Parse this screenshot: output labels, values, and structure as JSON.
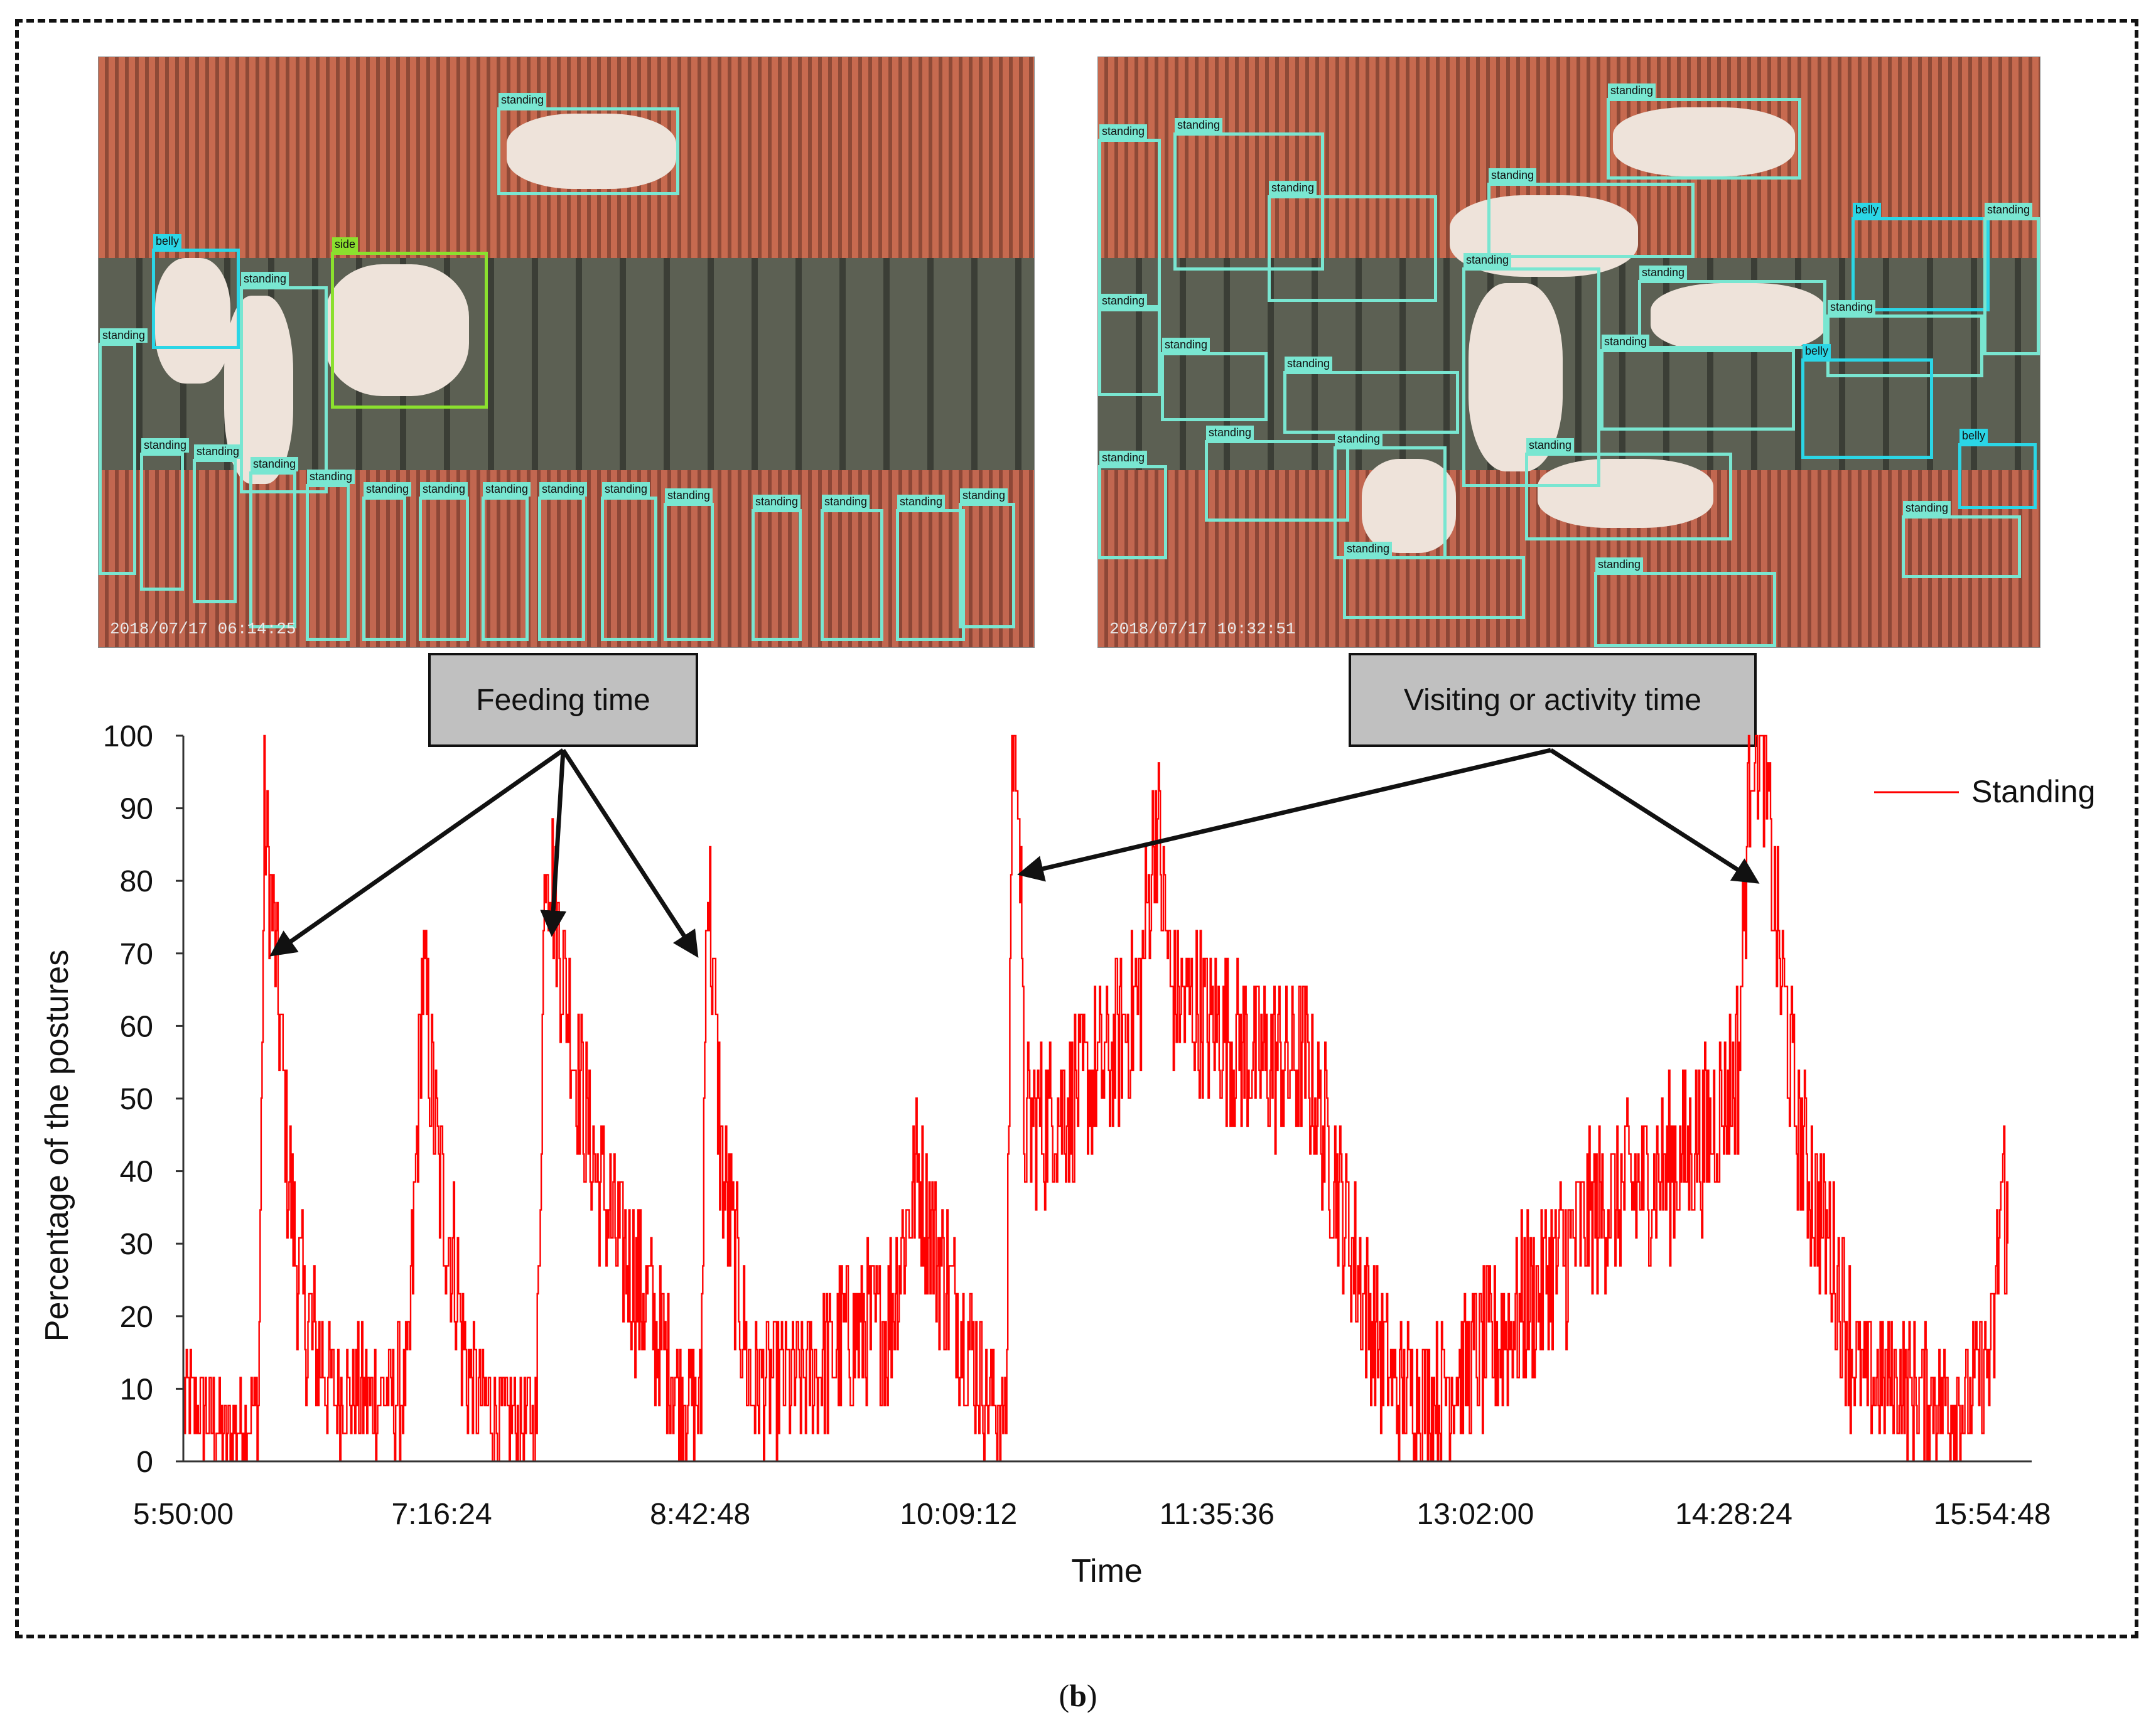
{
  "photos": {
    "left": {
      "timestamp": "2018/07/17 06:14:25",
      "labels": {
        "standing": "standing",
        "belly": "belly",
        "side": "side"
      }
    },
    "right": {
      "timestamp": "2018/07/17 10:32:51",
      "labels": {
        "standing": "standing",
        "belly": "belly"
      }
    }
  },
  "callouts": {
    "feeding": "Feeding time",
    "visiting": "Visiting or activity time"
  },
  "caption": {
    "open": "(",
    "letter": "b",
    "close": ")"
  },
  "colors": {
    "series": "#ff0000",
    "box": "#79e6d1",
    "belly_box": "#2bd6e6",
    "side_box": "#8be02e"
  },
  "chart_data": {
    "type": "line",
    "xlabel": "Time",
    "ylabel": "Percentage of the postures",
    "ylim": [
      0,
      100
    ],
    "yticks": [
      0,
      10,
      20,
      30,
      40,
      50,
      60,
      70,
      80,
      90,
      100
    ],
    "xlim": [
      "5:50:00",
      "16:08:00"
    ],
    "xticks": [
      "5:50:00",
      "7:16:24",
      "8:42:48",
      "10:09:12",
      "11:35:36",
      "13:02:00",
      "14:28:24",
      "15:54:48"
    ],
    "legend_position": "top-right",
    "grid": false,
    "series": [
      {
        "name": "Standing",
        "anchors": [
          [
            "5:50:00",
            8
          ],
          [
            "5:54:00",
            8
          ],
          [
            "6:05:00",
            4
          ],
          [
            "6:15:00",
            7
          ],
          [
            "6:17:00",
            88
          ],
          [
            "6:20:00",
            75
          ],
          [
            "6:25:00",
            40
          ],
          [
            "6:30:00",
            20
          ],
          [
            "6:40:00",
            10
          ],
          [
            "6:55:00",
            9
          ],
          [
            "7:05:00",
            10
          ],
          [
            "7:10:00",
            68
          ],
          [
            "7:15:00",
            40
          ],
          [
            "7:20:00",
            28
          ],
          [
            "7:25:00",
            12
          ],
          [
            "7:35:00",
            6
          ],
          [
            "7:48:00",
            6
          ],
          [
            "7:51:00",
            88
          ],
          [
            "7:56:00",
            70
          ],
          [
            "8:05:00",
            45
          ],
          [
            "8:15:00",
            30
          ],
          [
            "8:25:00",
            22
          ],
          [
            "8:35:00",
            10
          ],
          [
            "8:43:00",
            8
          ],
          [
            "8:45:00",
            84
          ],
          [
            "8:50:00",
            40
          ],
          [
            "9:00:00",
            10
          ],
          [
            "9:20:00",
            12
          ],
          [
            "9:35:00",
            18
          ],
          [
            "9:45:00",
            18
          ],
          [
            "9:55:00",
            40
          ],
          [
            "10:05:00",
            25
          ],
          [
            "10:18:00",
            10
          ],
          [
            "10:25:00",
            5
          ],
          [
            "10:27:00",
            100
          ],
          [
            "10:29:00",
            100
          ],
          [
            "10:31:00",
            45
          ],
          [
            "10:45:00",
            50
          ],
          [
            "11:00:00",
            55
          ],
          [
            "11:10:00",
            65
          ],
          [
            "11:15:00",
            90
          ],
          [
            "11:20:00",
            65
          ],
          [
            "11:35:00",
            60
          ],
          [
            "11:50:00",
            55
          ],
          [
            "12:05:00",
            55
          ],
          [
            "12:15:00",
            40
          ],
          [
            "12:25:00",
            22
          ],
          [
            "12:35:00",
            10
          ],
          [
            "12:50:00",
            10
          ],
          [
            "13:05:00",
            15
          ],
          [
            "13:25:00",
            25
          ],
          [
            "13:45:00",
            35
          ],
          [
            "14:05:00",
            40
          ],
          [
            "14:20:00",
            45
          ],
          [
            "14:30:00",
            55
          ],
          [
            "14:34:00",
            100
          ],
          [
            "14:38:00",
            100
          ],
          [
            "14:42:00",
            75
          ],
          [
            "14:50:00",
            45
          ],
          [
            "15:00:00",
            30
          ],
          [
            "15:10:00",
            12
          ],
          [
            "15:30:00",
            10
          ],
          [
            "15:46:00",
            8
          ],
          [
            "15:55:00",
            15
          ],
          [
            "15:58:00",
            40
          ],
          [
            "16:00:00",
            30
          ]
        ],
        "noise_amplitude": 12
      }
    ]
  }
}
